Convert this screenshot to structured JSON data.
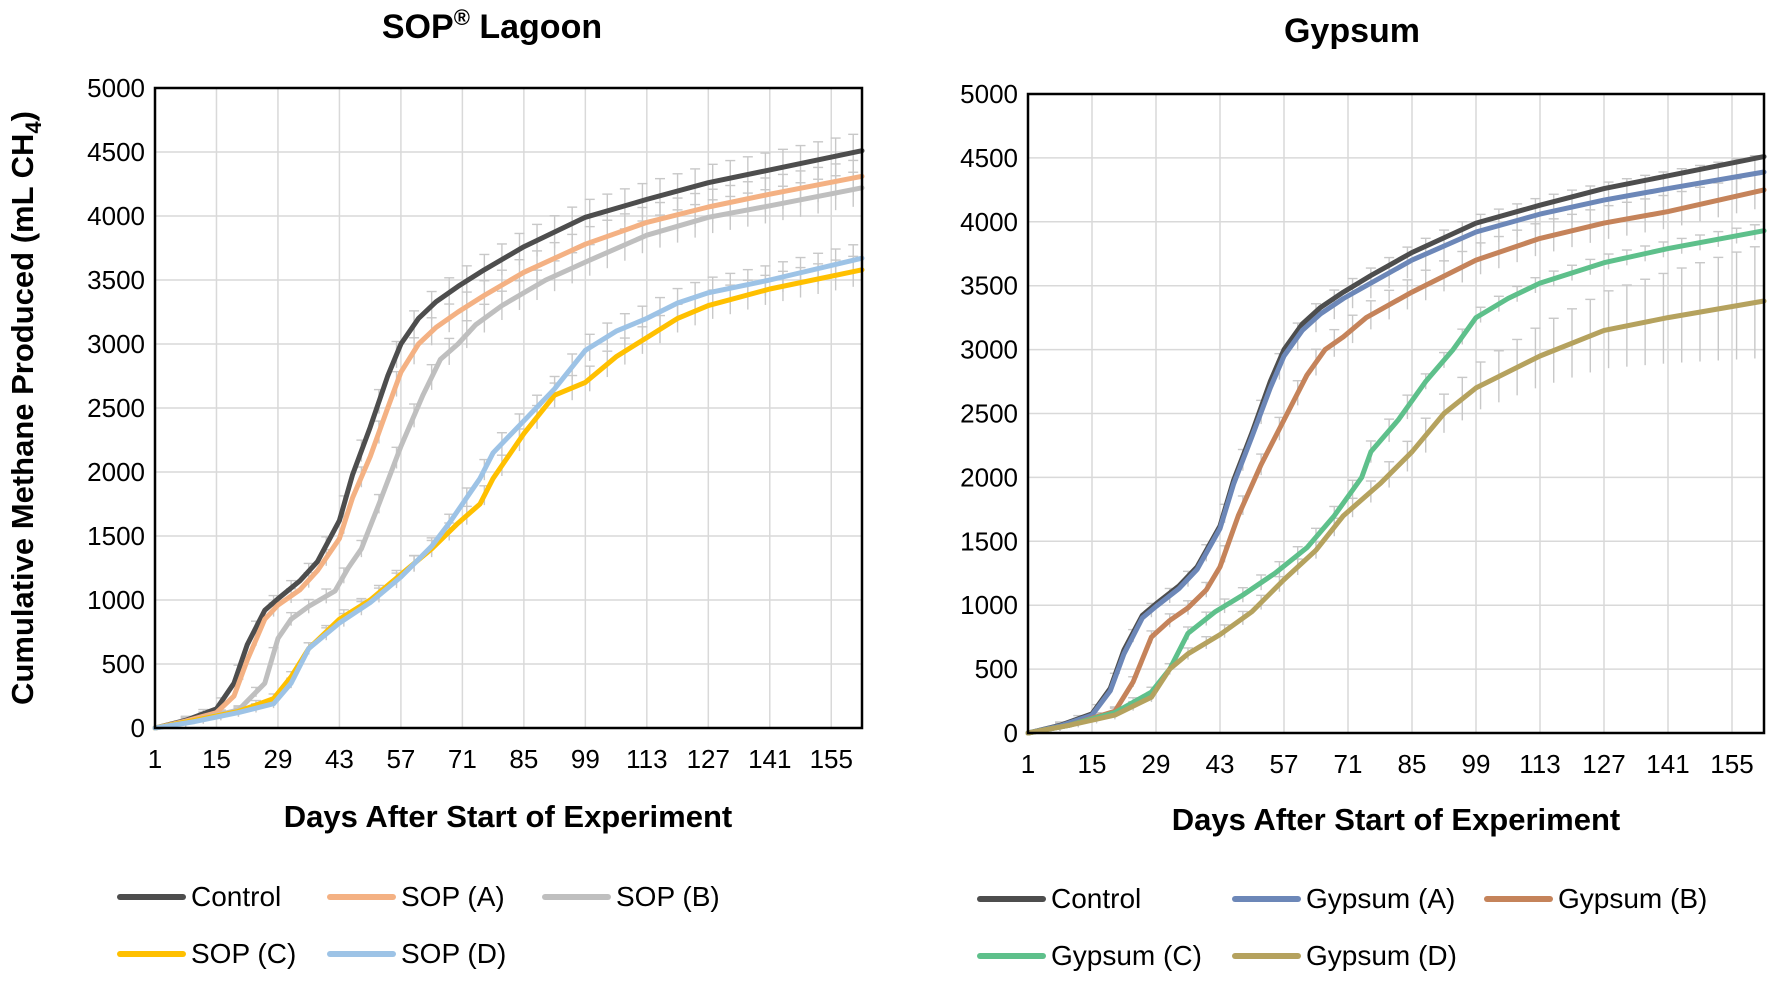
{
  "chart_data": [
    {
      "type": "line",
      "title": "SOP",
      "title_superscript": "®",
      "title_suffix": " Lagoon",
      "xlabel": "Days After Start of Experiment",
      "ylabel": "Cumulative Methane Produced (mL CH",
      "ylabel_subscript": "4",
      "ylabel_suffix": ")",
      "xlim": [
        1,
        162
      ],
      "ylim": [
        0,
        5000
      ],
      "x_ticks": [
        "1",
        "15",
        "29",
        "43",
        "57",
        "71",
        "85",
        "99",
        "113",
        "127",
        "141",
        "155"
      ],
      "y_ticks": [
        "0",
        "500",
        "1000",
        "1500",
        "2000",
        "2500",
        "3000",
        "3500",
        "4000",
        "4500",
        "5000"
      ],
      "grid": true,
      "legend_position": "bottom",
      "series": [
        {
          "name": "Control",
          "color": "#4d4d4d",
          "x": [
            1,
            8,
            15,
            19,
            22,
            26,
            29,
            34,
            38,
            43,
            46,
            50,
            54,
            57,
            61,
            65,
            70,
            76,
            85,
            99,
            113,
            127,
            141,
            162
          ],
          "y": [
            0,
            60,
            150,
            350,
            650,
            920,
            1010,
            1150,
            1300,
            1620,
            1980,
            2350,
            2750,
            3000,
            3200,
            3330,
            3450,
            3580,
            3760,
            3990,
            4130,
            4260,
            4360,
            4510
          ]
        },
        {
          "name": "SOP (A)",
          "color": "#f4b183",
          "x": [
            1,
            8,
            15,
            19,
            22,
            26,
            29,
            34,
            38,
            43,
            46,
            50,
            54,
            57,
            61,
            65,
            70,
            76,
            85,
            99,
            113,
            127,
            141,
            162
          ],
          "y": [
            0,
            55,
            120,
            250,
            530,
            850,
            960,
            1080,
            1230,
            1480,
            1800,
            2120,
            2500,
            2780,
            3000,
            3130,
            3250,
            3380,
            3560,
            3780,
            3950,
            4070,
            4170,
            4310
          ]
        },
        {
          "name": "SOP (B)",
          "color": "#bfbfbf",
          "x": [
            1,
            10,
            20,
            26,
            29,
            32,
            36,
            42,
            45,
            48,
            52,
            57,
            62,
            66,
            70,
            74,
            80,
            90,
            99,
            113,
            127,
            141,
            162
          ],
          "y": [
            0,
            60,
            140,
            350,
            700,
            850,
            950,
            1070,
            1250,
            1400,
            1750,
            2200,
            2600,
            2880,
            3000,
            3150,
            3300,
            3500,
            3640,
            3850,
            3990,
            4080,
            4220
          ]
        },
        {
          "name": "SOP (C)",
          "color": "#ffc000",
          "x": [
            1,
            10,
            20,
            28,
            32,
            36,
            43,
            50,
            57,
            64,
            70,
            75,
            78,
            85,
            92,
            99,
            106,
            113,
            120,
            127,
            141,
            162
          ],
          "y": [
            0,
            60,
            130,
            230,
            400,
            620,
            850,
            1000,
            1200,
            1400,
            1600,
            1750,
            1950,
            2300,
            2600,
            2700,
            2900,
            3050,
            3200,
            3300,
            3430,
            3580
          ]
        },
        {
          "name": "SOP (D)",
          "color": "#9dc3e6",
          "x": [
            1,
            10,
            20,
            28,
            32,
            36,
            43,
            50,
            57,
            64,
            68,
            73,
            75,
            78,
            85,
            92,
            99,
            106,
            113,
            120,
            127,
            141,
            162
          ],
          "y": [
            0,
            50,
            120,
            190,
            350,
            620,
            820,
            980,
            1180,
            1420,
            1600,
            1850,
            1950,
            2150,
            2400,
            2650,
            2950,
            3100,
            3200,
            3320,
            3400,
            3500,
            3670
          ]
        }
      ]
    },
    {
      "type": "line",
      "title": "Gypsum",
      "title_superscript": "",
      "title_suffix": "",
      "xlabel": "Days After Start of Experiment",
      "ylabel": "",
      "xlim": [
        1,
        162
      ],
      "ylim": [
        0,
        5000
      ],
      "x_ticks": [
        "1",
        "15",
        "29",
        "43",
        "57",
        "71",
        "85",
        "99",
        "113",
        "127",
        "141",
        "155"
      ],
      "y_ticks": [
        "0",
        "500",
        "1000",
        "1500",
        "2000",
        "2500",
        "3000",
        "3500",
        "4000",
        "4500",
        "5000"
      ],
      "grid": true,
      "legend_position": "bottom",
      "series": [
        {
          "name": "Control",
          "color": "#4d4d4d",
          "x": [
            1,
            8,
            15,
            19,
            22,
            26,
            29,
            34,
            38,
            43,
            46,
            50,
            54,
            57,
            61,
            65,
            70,
            76,
            85,
            99,
            113,
            127,
            141,
            162
          ],
          "y": [
            0,
            60,
            150,
            350,
            650,
            920,
            1010,
            1150,
            1300,
            1620,
            1980,
            2350,
            2750,
            3000,
            3200,
            3330,
            3450,
            3580,
            3760,
            3990,
            4130,
            4260,
            4360,
            4510
          ]
        },
        {
          "name": "Gypsum (A)",
          "color": "#6c87b8",
          "x": [
            1,
            8,
            15,
            19,
            22,
            26,
            29,
            34,
            38,
            43,
            46,
            50,
            54,
            57,
            61,
            65,
            70,
            76,
            85,
            99,
            113,
            127,
            141,
            162
          ],
          "y": [
            0,
            55,
            140,
            330,
            620,
            900,
            990,
            1130,
            1280,
            1600,
            1950,
            2320,
            2700,
            2950,
            3150,
            3280,
            3400,
            3520,
            3700,
            3920,
            4060,
            4170,
            4260,
            4390
          ]
        },
        {
          "name": "Gypsum (B)",
          "color": "#c5835a",
          "x": [
            1,
            10,
            20,
            24,
            28,
            32,
            36,
            40,
            43,
            47,
            52,
            57,
            62,
            66,
            70,
            75,
            85,
            99,
            113,
            127,
            141,
            162
          ],
          "y": [
            0,
            60,
            170,
            400,
            750,
            880,
            980,
            1120,
            1300,
            1700,
            2100,
            2450,
            2800,
            3000,
            3100,
            3250,
            3450,
            3700,
            3870,
            3990,
            4080,
            4250
          ]
        },
        {
          "name": "Gypsum (C)",
          "color": "#5ec08b",
          "x": [
            1,
            10,
            20,
            28,
            32,
            36,
            42,
            48,
            55,
            62,
            68,
            74,
            76,
            82,
            88,
            94,
            99,
            106,
            113,
            127,
            141,
            162
          ],
          "y": [
            0,
            60,
            160,
            320,
            500,
            780,
            950,
            1080,
            1250,
            1450,
            1700,
            2000,
            2200,
            2450,
            2750,
            3000,
            3250,
            3400,
            3520,
            3680,
            3790,
            3930
          ]
        },
        {
          "name": "Gypsum (D)",
          "color": "#b5a25e",
          "x": [
            1,
            10,
            20,
            28,
            32,
            36,
            43,
            50,
            57,
            64,
            70,
            78,
            85,
            92,
            99,
            113,
            127,
            141,
            162
          ],
          "y": [
            0,
            60,
            140,
            280,
            500,
            620,
            770,
            950,
            1200,
            1430,
            1700,
            1950,
            2200,
            2500,
            2700,
            2950,
            3150,
            3250,
            3380
          ]
        }
      ]
    }
  ]
}
